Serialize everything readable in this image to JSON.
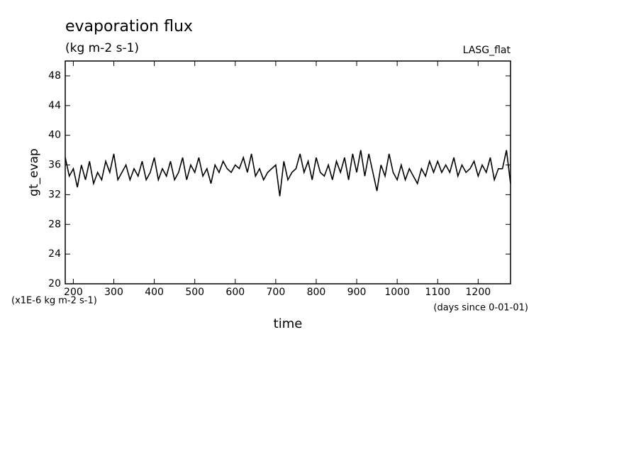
{
  "chart_data": {
    "type": "line",
    "title": "evaporation flux",
    "subtitle": "(kg m-2 s-1)",
    "annotation": "LASG_flat",
    "y_label": "gt_evap",
    "x_label": "time",
    "y_units": "(x1E-6 kg m-2 s-1)",
    "x_units": "(days since 0-01-01)",
    "x": [
      180,
      190,
      200,
      210,
      220,
      230,
      240,
      250,
      260,
      270,
      280,
      290,
      300,
      310,
      320,
      330,
      340,
      350,
      360,
      370,
      380,
      390,
      400,
      410,
      420,
      430,
      440,
      450,
      460,
      470,
      480,
      490,
      500,
      510,
      520,
      530,
      540,
      550,
      560,
      570,
      580,
      590,
      600,
      610,
      620,
      630,
      640,
      650,
      660,
      670,
      680,
      690,
      700,
      710,
      720,
      730,
      740,
      750,
      760,
      770,
      780,
      790,
      800,
      810,
      820,
      830,
      840,
      850,
      860,
      870,
      880,
      890,
      900,
      910,
      920,
      930,
      940,
      950,
      960,
      970,
      980,
      990,
      1000,
      1010,
      1020,
      1030,
      1040,
      1050,
      1060,
      1070,
      1080,
      1090,
      1100,
      1110,
      1120,
      1130,
      1140,
      1150,
      1160,
      1170,
      1180,
      1190,
      1200,
      1210,
      1220,
      1230,
      1240,
      1250,
      1260,
      1270,
      1280
    ],
    "series": [
      {
        "name": "gt_evap",
        "color": "#000000",
        "values": [
          37,
          34.5,
          35.5,
          33,
          36,
          34,
          36.5,
          33.5,
          35,
          34,
          36.5,
          35,
          37.5,
          34,
          35,
          36,
          34,
          35.5,
          34.5,
          36.5,
          34,
          35,
          37,
          34,
          35.5,
          34.5,
          36.5,
          34,
          35,
          37,
          34,
          36,
          35,
          37,
          34.5,
          35.5,
          33.5,
          36,
          35,
          36.5,
          35.5,
          35,
          36,
          35.5,
          37,
          35,
          37.5,
          34.5,
          35.5,
          34,
          35,
          35.5,
          36,
          31.8,
          36.5,
          34,
          35,
          35.5,
          37.5,
          35,
          36.5,
          34,
          37,
          35,
          34.5,
          36,
          34,
          36.5,
          35,
          37,
          34,
          37.5,
          35,
          38,
          34.5,
          37.5,
          35,
          32.5,
          36,
          34.5,
          37.5,
          35,
          34,
          36,
          34,
          35.5,
          34.5,
          33.5,
          35.5,
          34.5,
          36.5,
          35,
          36.5,
          35,
          36,
          35,
          37,
          34.5,
          36,
          35,
          35.5,
          36.5,
          34.5,
          36,
          35,
          37,
          34,
          35.5,
          35.5,
          38,
          33.5
        ]
      }
    ],
    "xlim": [
      180,
      1280
    ],
    "ylim": [
      20,
      50
    ],
    "xticks": [
      200,
      300,
      400,
      500,
      600,
      700,
      800,
      900,
      1000,
      1100,
      1200
    ],
    "yticks": [
      20,
      24,
      28,
      32,
      36,
      40,
      44,
      48
    ]
  }
}
